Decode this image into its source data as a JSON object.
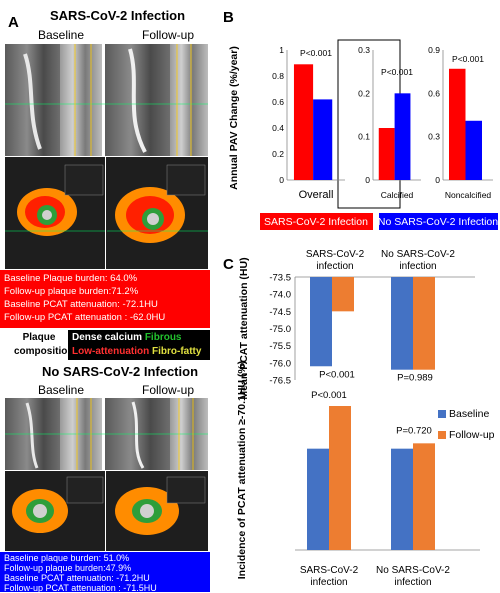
{
  "panel_a": {
    "letter": "A",
    "sars_title": "SARS-CoV-2 Infection",
    "no_sars_title": "No SARS-CoV-2 Infection",
    "baseline_label": "Baseline",
    "followup_label": "Follow-up",
    "sars_stats": [
      "Baseline Plaque burden: 64.0%",
      "Follow-up plaque burden:71.2%",
      "Baseline PCAT attenuation: -72.1HU",
      "Follow-up PCAT attenuation : -62.0HU"
    ],
    "no_sars_stats": [
      "Baseline plaque burden: 51.0%",
      "Follow-up plaque burden:47.9%",
      "Baseline PCAT attenuation: -71.2HU",
      "Follow-up PCAT attenuation : -71.5HU"
    ],
    "plaque_label_1": "Plaque",
    "plaque_label_2": "composition",
    "dense_calcium": "Dense calcium",
    "fibrous": "Fibrous",
    "low_attenuation": "Low-attenuation",
    "fibro_fatty": "Fibro-fatty"
  },
  "colors": {
    "sars": "#ff0000",
    "no_sars": "#0000ff",
    "baseline": "#4472c4",
    "followup": "#ed7d31",
    "sars_box": "#ff0000",
    "no_sars_box": "#0000ff"
  },
  "chart_data": [
    {
      "id": "B",
      "type": "bar",
      "letter": "B",
      "ylabel": "Annual PAV Change (%/year)",
      "subplots": [
        {
          "xlabel": "Overall",
          "ylim": [
            0,
            1.0
          ],
          "ticks": [
            "0",
            "0.2",
            "0.4",
            "0.6",
            "0.8",
            "1"
          ],
          "tick_values": [
            0,
            0.2,
            0.4,
            0.6,
            0.8,
            1.0
          ],
          "values": [
            0.89,
            0.62
          ],
          "pvalue": "P<0.001"
        },
        {
          "xlabel": "Calcified",
          "ylim": [
            0,
            0.3
          ],
          "ticks": [
            "0",
            "0.1",
            "0.2",
            "0.3"
          ],
          "tick_values": [
            0,
            0.1,
            0.2,
            0.3
          ],
          "values": [
            0.12,
            0.2
          ],
          "pvalue": "P<0.001"
        },
        {
          "xlabel": "Noncalcified",
          "ylim": [
            0,
            0.9
          ],
          "ticks": [
            "0",
            "0.3",
            "0.6",
            "0.9"
          ],
          "tick_values": [
            0,
            0.3,
            0.6,
            0.9
          ],
          "values": [
            0.77,
            0.41
          ],
          "pvalue": "P<0.001"
        }
      ],
      "legend": [
        "SARS-CoV-2 Infection",
        "No SARS-CoV-2 Infection"
      ]
    },
    {
      "id": "C1",
      "type": "bar",
      "letter": "C",
      "ylabel": "Mean PCAT attenuation (HU)",
      "ylim": [
        -76.5,
        -73.5
      ],
      "ticks": [
        "-73.5",
        "-74.0",
        "-74.5",
        "-75.0",
        "-75.5",
        "-76.0",
        "-76.5"
      ],
      "tick_values": [
        -73.5,
        -74.0,
        -74.5,
        -75.0,
        -75.5,
        -76.0,
        -76.5
      ],
      "categories": [
        "SARS-CoV-2 infection",
        "No SARS-CoV-2 infection"
      ],
      "series": [
        {
          "name": "Baseline",
          "values": [
            -76.1,
            -76.2
          ]
        },
        {
          "name": "Follow-up",
          "values": [
            -74.5,
            -76.2
          ]
        }
      ],
      "pvalues": [
        "P<0.001",
        "P=0.989"
      ]
    },
    {
      "id": "C2",
      "type": "bar",
      "ylabel": "Incidence of PCAT attenuation ≥-70.1HU (%)",
      "ylim": [
        0,
        30
      ],
      "categories": [
        "SARS-CoV-2 infection",
        "No SARS-CoV-2 infection"
      ],
      "series": [
        {
          "name": "Baseline",
          "values": [
            19,
            19
          ]
        },
        {
          "name": "Follow-up",
          "values": [
            27,
            20
          ]
        }
      ],
      "pvalues": [
        "P<0.001",
        "P=0.720"
      ],
      "legend": [
        "Baseline",
        "Follow-up"
      ]
    }
  ]
}
